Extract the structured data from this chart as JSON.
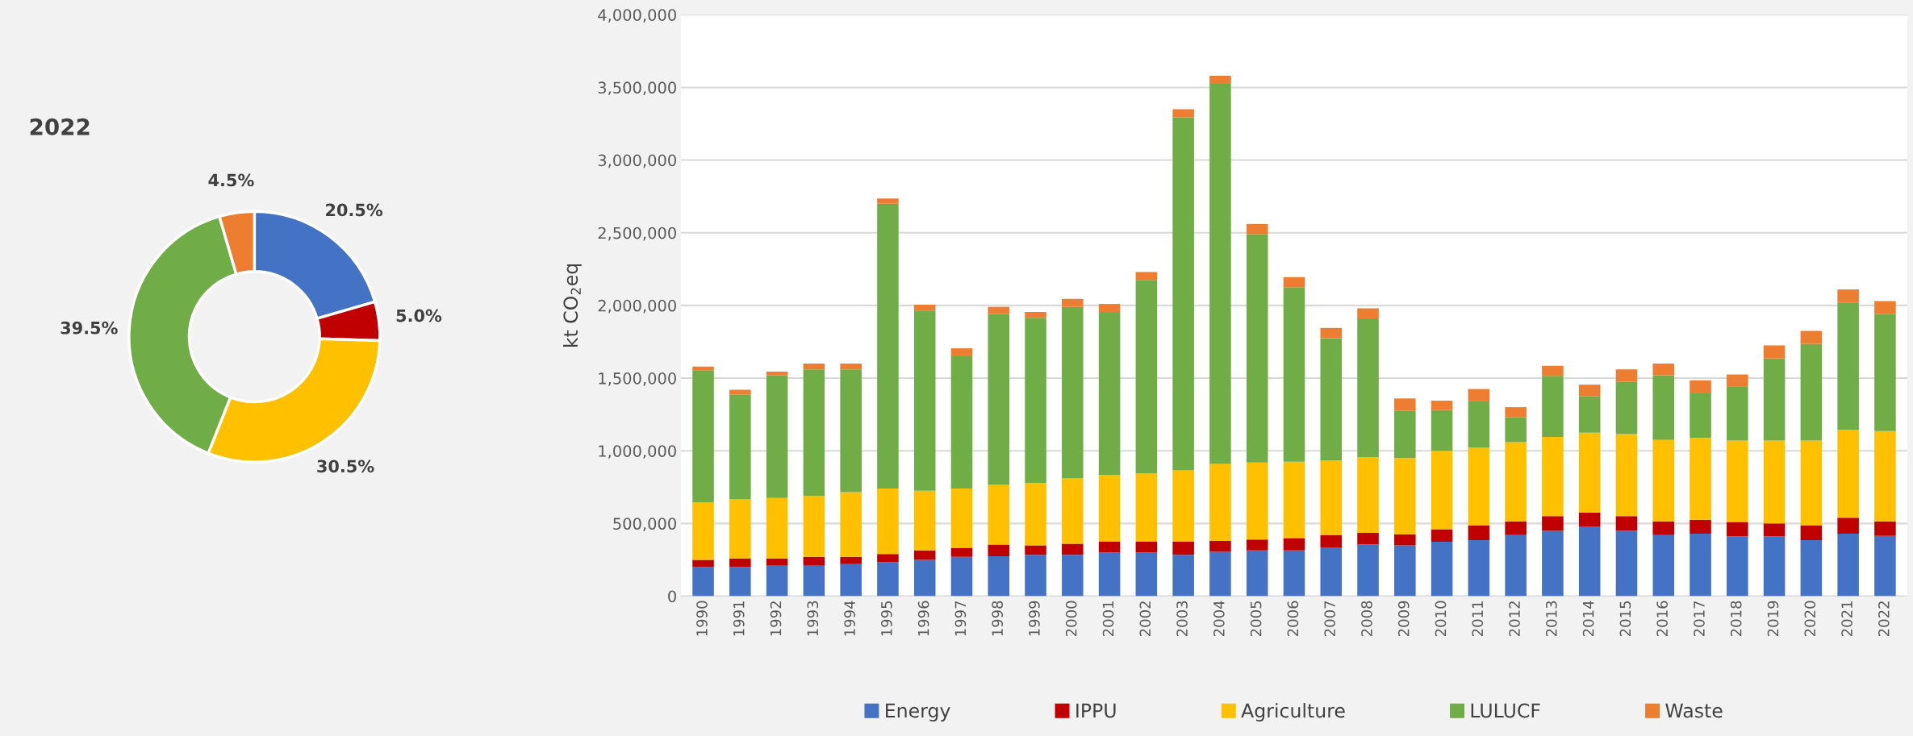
{
  "chart_data": [
    {
      "type": "donut",
      "title": "2022",
      "categories": [
        null,
        null,
        null,
        null,
        null
      ],
      "values": [
        20.5,
        5.0,
        30.5,
        39.5,
        4.5
      ],
      "colors": [
        "#4472c4",
        "#c00000",
        "#ffc000",
        "#70ad47",
        "#ed7d31"
      ],
      "value_labels": [
        "20.5%",
        "5.0%",
        "30.5%",
        "39.5%",
        "4.5%"
      ]
    },
    {
      "type": "bar",
      "stacked": true,
      "ylabel": "kt CO$_{2}$eq",
      "categories": [
        "1990",
        "1991",
        "1992",
        "1993",
        "1994",
        "1995",
        "1996",
        "1997",
        "1998",
        "1999",
        "2000",
        "2001",
        "2002",
        "2003",
        "2004",
        "2005",
        "2006",
        "2007",
        "2008",
        "2009",
        "2010",
        "2011",
        "2012",
        "2013",
        "2014",
        "2015",
        "2016",
        "2017",
        "2018",
        "2019",
        "2020",
        "2021",
        "2022"
      ],
      "series": [
        {
          "name": "Energy",
          "color": "#4472c4",
          "values": [
            200000,
            200000,
            210000,
            210000,
            220000,
            235000,
            250000,
            270000,
            275000,
            285000,
            285000,
            300000,
            300000,
            285000,
            305000,
            315000,
            315000,
            335000,
            355000,
            350000,
            375000,
            385000,
            420000,
            450000,
            480000,
            450000,
            420000,
            430000,
            410000,
            410000,
            385000,
            430000,
            415000
          ]
        },
        {
          "name": "IPPU",
          "color": "#c00000",
          "values": [
            50000,
            60000,
            50000,
            60000,
            50000,
            55000,
            65000,
            60000,
            80000,
            65000,
            75000,
            75000,
            75000,
            90000,
            75000,
            75000,
            85000,
            85000,
            80000,
            75000,
            85000,
            100000,
            95000,
            100000,
            95000,
            100000,
            95000,
            95000,
            100000,
            90000,
            100000,
            110000,
            100000
          ]
        },
        {
          "name": "Agriculture",
          "color": "#ffc000",
          "values": [
            395000,
            405000,
            415000,
            420000,
            445000,
            450000,
            410000,
            410000,
            410000,
            430000,
            450000,
            460000,
            470000,
            490000,
            530000,
            530000,
            525000,
            515000,
            520000,
            525000,
            540000,
            535000,
            545000,
            545000,
            550000,
            565000,
            560000,
            565000,
            560000,
            570000,
            585000,
            605000,
            620000
          ]
        },
        {
          "name": "LULUCF",
          "color": "#70ad47",
          "values": [
            910000,
            720000,
            845000,
            870000,
            845000,
            1960000,
            1240000,
            910000,
            1175000,
            1135000,
            1180000,
            1120000,
            1330000,
            2430000,
            2615000,
            1570000,
            1200000,
            840000,
            955000,
            325000,
            280000,
            320000,
            170000,
            420000,
            250000,
            360000,
            445000,
            305000,
            370000,
            565000,
            665000,
            875000,
            805000
          ]
        },
        {
          "name": "Waste",
          "color": "#ed7d31",
          "values": [
            25000,
            35000,
            25000,
            40000,
            40000,
            35000,
            40000,
            55000,
            50000,
            40000,
            55000,
            55000,
            55000,
            55000,
            55000,
            70000,
            70000,
            70000,
            70000,
            85000,
            65000,
            85000,
            70000,
            70000,
            80000,
            85000,
            80000,
            90000,
            85000,
            90000,
            90000,
            90000,
            90000
          ]
        }
      ],
      "ylim": [
        0,
        4000000
      ],
      "yticks": [
        0,
        {
          "value": 500000,
          "label": "500,000"
        },
        {
          "value": 1000000,
          "label": "1,000,000"
        },
        {
          "value": 1500000,
          "label": "1,500,000"
        },
        {
          "value": 2000000,
          "label": "2,000,000"
        },
        {
          "value": 2500000,
          "label": "2,500,000"
        },
        {
          "value": 3000000,
          "label": "3,000,000"
        },
        {
          "value": 3500000,
          "label": "3,500,000"
        },
        {
          "value": 4000000,
          "label": "4,000,000"
        }
      ],
      "grid": "y",
      "legend": "bottom"
    }
  ]
}
